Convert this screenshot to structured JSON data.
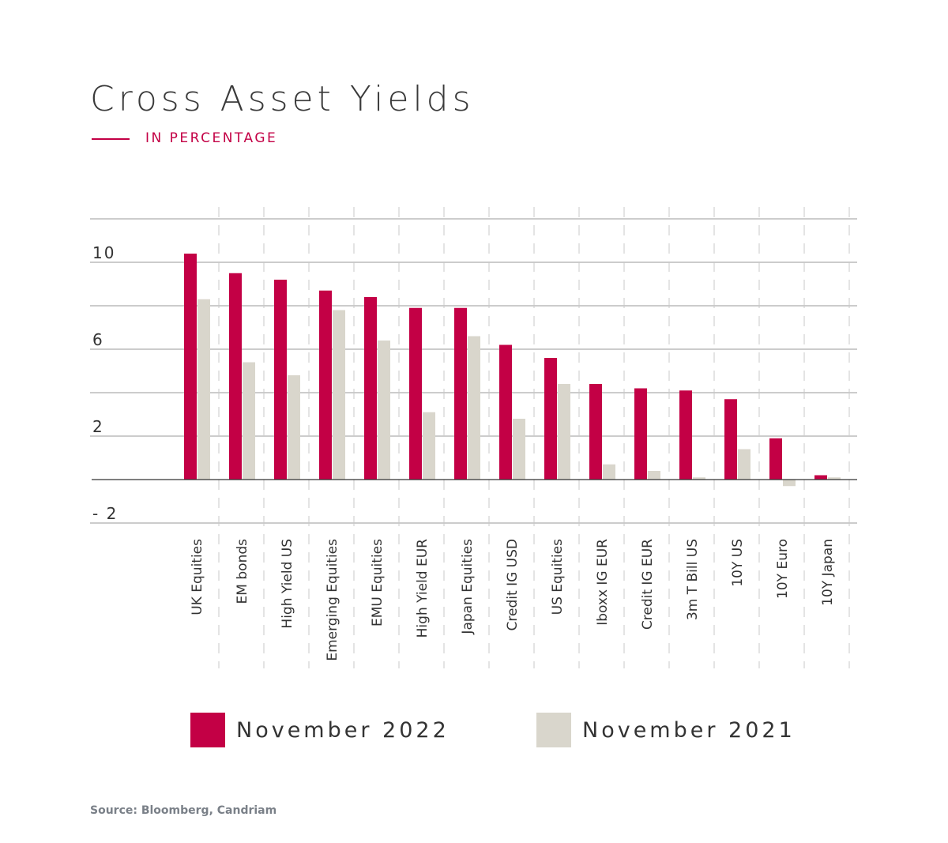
{
  "chart_data": {
    "type": "bar",
    "title": "Cross Asset Yields",
    "subtitle": "IN PERCENTAGE",
    "categories": [
      "UK Equities",
      "EM bonds",
      "High Yield US",
      "Emerging Equities",
      "EMU Equities",
      "High Yield EUR",
      "Japan Equities",
      "Credit IG USD",
      "US Equities",
      "Iboxx IG EUR",
      "Credit IG EUR",
      "3m T Bill US",
      "10Y US",
      "10Y Euro",
      "10Y Japan"
    ],
    "series": [
      {
        "name": "November 2022",
        "color": "#c30045",
        "values": [
          10.4,
          9.5,
          9.2,
          8.7,
          8.4,
          7.9,
          7.9,
          6.2,
          5.6,
          4.4,
          4.2,
          4.1,
          3.7,
          1.9,
          0.2
        ]
      },
      {
        "name": "November 2021",
        "color": "#d9d6cc",
        "values": [
          8.3,
          5.4,
          4.8,
          7.8,
          6.4,
          3.1,
          6.6,
          2.8,
          4.4,
          0.7,
          0.4,
          0.1,
          1.4,
          -0.3,
          0.1
        ]
      }
    ],
    "yticks": [
      "10",
      "6",
      "2",
      "-2"
    ],
    "ytick_values": [
      10,
      6,
      2,
      -2
    ],
    "ylim": [
      -2,
      12
    ],
    "grid": true,
    "legend": "bottom",
    "source": "Source: Bloomberg, Candriam"
  }
}
